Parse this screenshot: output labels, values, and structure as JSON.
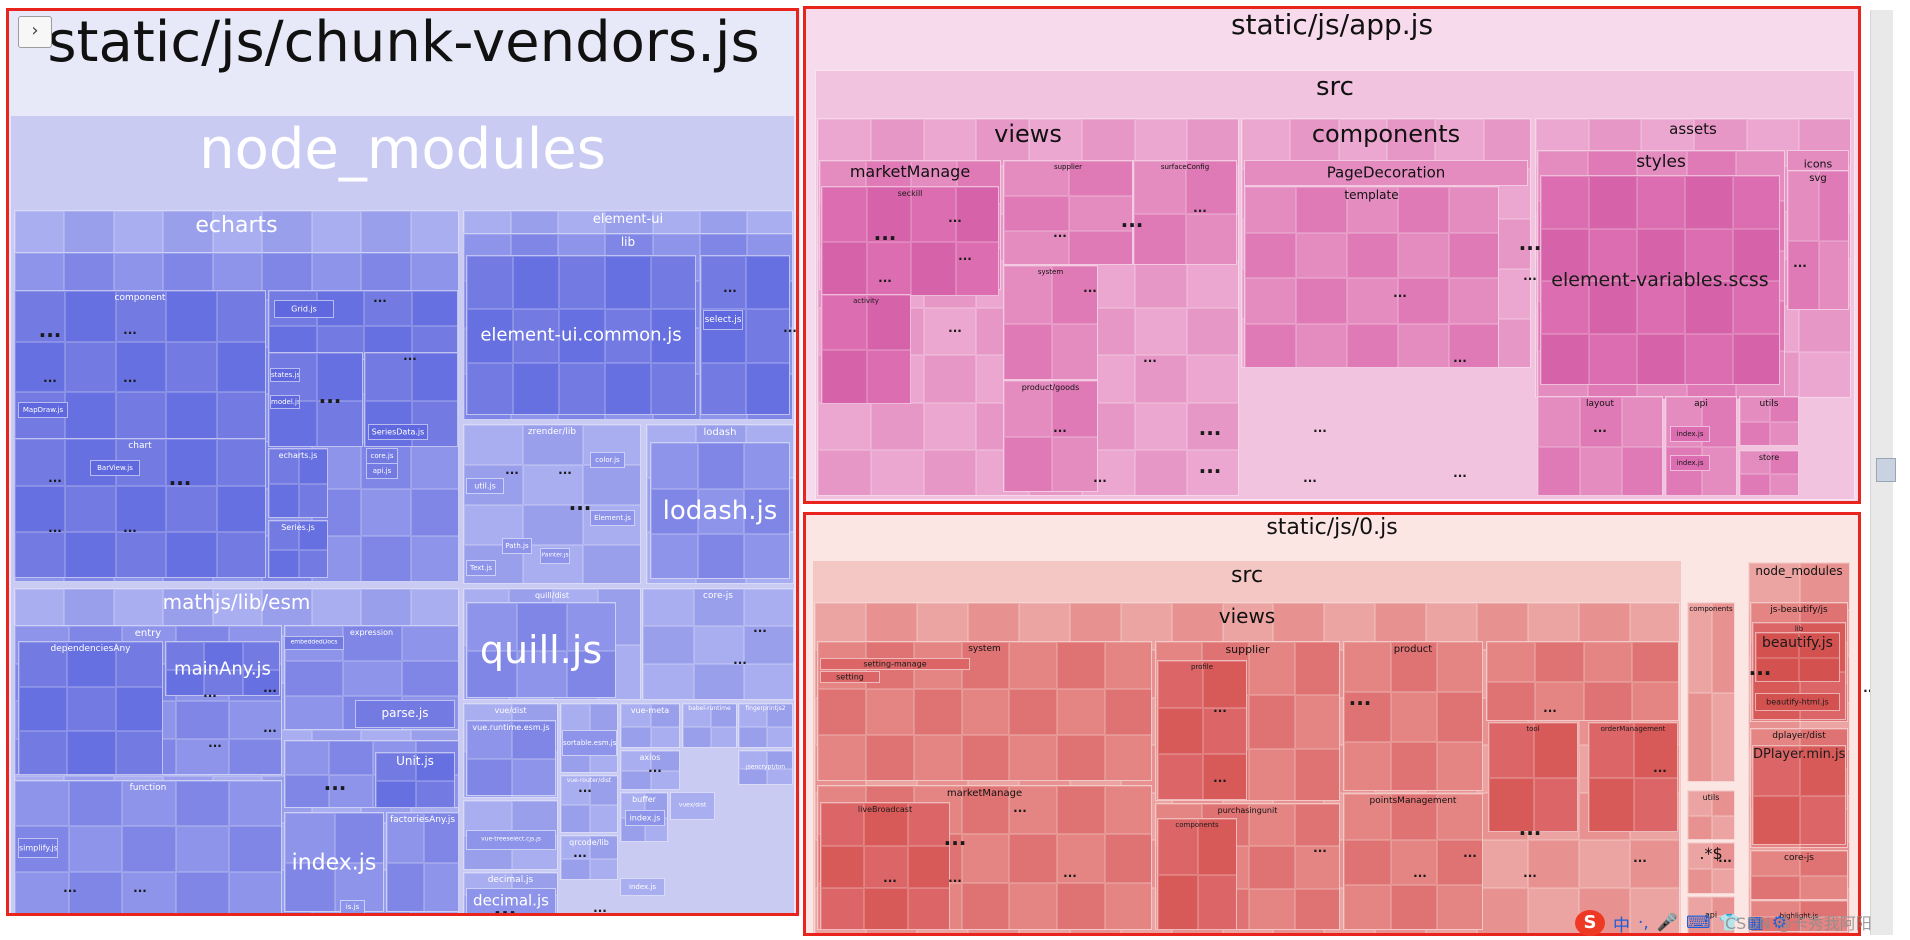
{
  "toggle_icon": "chevron-right-icon",
  "toggle_glyph": "›",
  "colors": {
    "vendors_bg": "#e7e8f8",
    "vendors_cell": "#6d78e2",
    "app_bg": "#f6d9ec",
    "app_cell": "#d86aaa",
    "zero_bg": "#fbe5e4",
    "zero_cell": "#d9595c",
    "highlight_outline": "#e8241c"
  },
  "chunks": {
    "vendors": {
      "title": "static/js/chunk-vendors.js",
      "node_modules": "node_modules",
      "echarts": "echarts",
      "echarts_lib": "lib",
      "component": "component",
      "grid": "Grid.js",
      "states": "states.js",
      "model": "model.js",
      "mapdraw": "MapDraw.js",
      "seriesdata": "SeriesData.js",
      "chart": "chart",
      "barview": "BarView.js",
      "echartsjs": "echarts.js",
      "corejs": "core.js",
      "apijs": "api.js",
      "seriesjs": "Series.js",
      "element_ui": "element-ui",
      "element_lib": "lib",
      "element_common": "element-ui.common.js",
      "selectjs": "select.js",
      "zrender": "zrender/lib",
      "utiljs": "util.js",
      "colorjs": "color.js",
      "elementjs": "Element.js",
      "pathjs": "Path.js",
      "painterjs": "Painter.js",
      "textjs": "Text.js",
      "lodash": "lodash",
      "lodashjs": "lodash.js",
      "mathjs": "mathjs/lib/esm",
      "entry": "entry",
      "depsany": "dependenciesAny",
      "mainany": "mainAny.js",
      "expression": "expression",
      "embedded": "embeddedDocs",
      "parsejs": "parse.js",
      "unitjs": "Unit.js",
      "function": "function",
      "simplify": "simplify.js",
      "indexjs": "index.js",
      "factoriesany": "factoriesAny.js",
      "isjs": "is.js",
      "quill": "quill/dist",
      "quilljs": "quill.js",
      "corejs_pkg": "core-js",
      "vue": "vue/dist",
      "vueruntime": "vue.runtime.esm.js",
      "vuetree": "vue-treeselect.cjs.js",
      "sortable": "sortable.esm.js",
      "vuerouter": "vue-router/dist",
      "qrcode": "qrcode/lib",
      "vuemeta": "vue-meta",
      "babel": "babel-runtime",
      "fingerprint": "fingerprintjs2",
      "axios": "axios",
      "jsencrypt": "jsencrypt/bin",
      "buffer": "buffer",
      "vuedist": "vuex/dist",
      "bufindex": "index.js",
      "smallindex": "index.js",
      "decimal": "decimal.js",
      "decimaljs": "decimal.js"
    },
    "app": {
      "title": "static/js/app.js",
      "src": "src",
      "views": "views",
      "marketmanage": "marketManage",
      "seckill": "seckill",
      "activity": "activity",
      "supplier": "supplier",
      "surfaceconfig": "surfaceConfig",
      "system": "system",
      "productgoods": "product/goods",
      "components": "components",
      "pagedecoration": "PageDecoration",
      "template": "template",
      "assets": "assets",
      "styles": "styles",
      "elementvars": "element-variables.scss",
      "icons": "icons",
      "svg": "svg",
      "layout": "layout",
      "api": "api",
      "utils": "utils",
      "store": "store",
      "index1": "index.js",
      "index2": "index.js"
    },
    "zero": {
      "title": "static/js/0.js",
      "src": "src",
      "views": "views",
      "system": "system",
      "settingmanage": "setting-manage",
      "setting": "setting",
      "supplier": "supplier",
      "profile": "profile",
      "product": "product",
      "tool": "tool",
      "ordermanagement": "orderManagement",
      "marketmanage": "marketManage",
      "livebroadcast": "liveBroadcast",
      "purchasing": "purchasingunit",
      "components_sub": "components",
      "points": "pointsManagement",
      "components": "components",
      "utils": "utils",
      "regex": ".*$",
      "api": "api",
      "node_modules": "node_modules",
      "jsbeautify": "js-beautify/js",
      "lib": "lib",
      "beautify": "beautify.js",
      "beautifyhtml": "beautify-html.js",
      "dplayer": "dplayer/dist",
      "dplayermin": "DPlayer.min.js",
      "corejs": "core-js",
      "highlight": "highlight.js"
    }
  },
  "ellipsis": "...",
  "ime": {
    "logo": "S",
    "lang": "中",
    "icons": [
      "dot-icon",
      "microphone-icon",
      "keyboard-icon",
      "shirt-icon",
      "grid-icon",
      "gear-icon"
    ],
    "glyphs": [
      "·,",
      "🎤",
      "⌨",
      "👕",
      "▦",
      "⚙"
    ]
  },
  "watermark": "CSDN @卡秀我阿阳"
}
